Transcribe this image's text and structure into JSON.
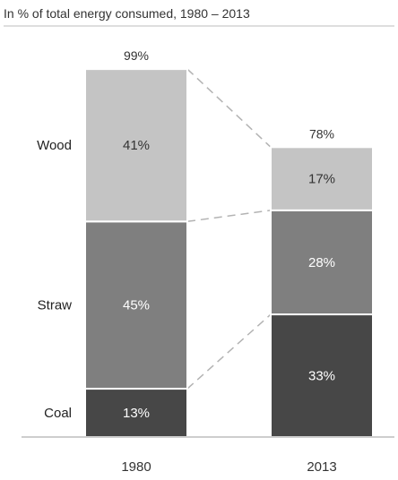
{
  "chart_data": {
    "type": "bar",
    "stacked": true,
    "title": "In % of total energy consumed, 1980 – 2013",
    "xlabel": "",
    "ylabel": "",
    "ylim": [
      0,
      100
    ],
    "categories": [
      "1980",
      "2013"
    ],
    "totals": [
      "99%",
      "78%"
    ],
    "series": [
      {
        "name": "Coal",
        "values": [
          13,
          33
        ],
        "labels": [
          "13%",
          "33%"
        ],
        "color": "#474747",
        "text_color": "#ffffff"
      },
      {
        "name": "Straw",
        "values": [
          45,
          28
        ],
        "labels": [
          "45%",
          "28%"
        ],
        "color": "#7f7f7f",
        "text_color": "#ffffff"
      },
      {
        "name": "Wood",
        "values": [
          41,
          17
        ],
        "labels": [
          "41%",
          "17%"
        ],
        "color": "#c4c4c4",
        "text_color": "#333333"
      }
    ],
    "connectors": "dashed",
    "grid": false,
    "legend": "left-inline"
  }
}
